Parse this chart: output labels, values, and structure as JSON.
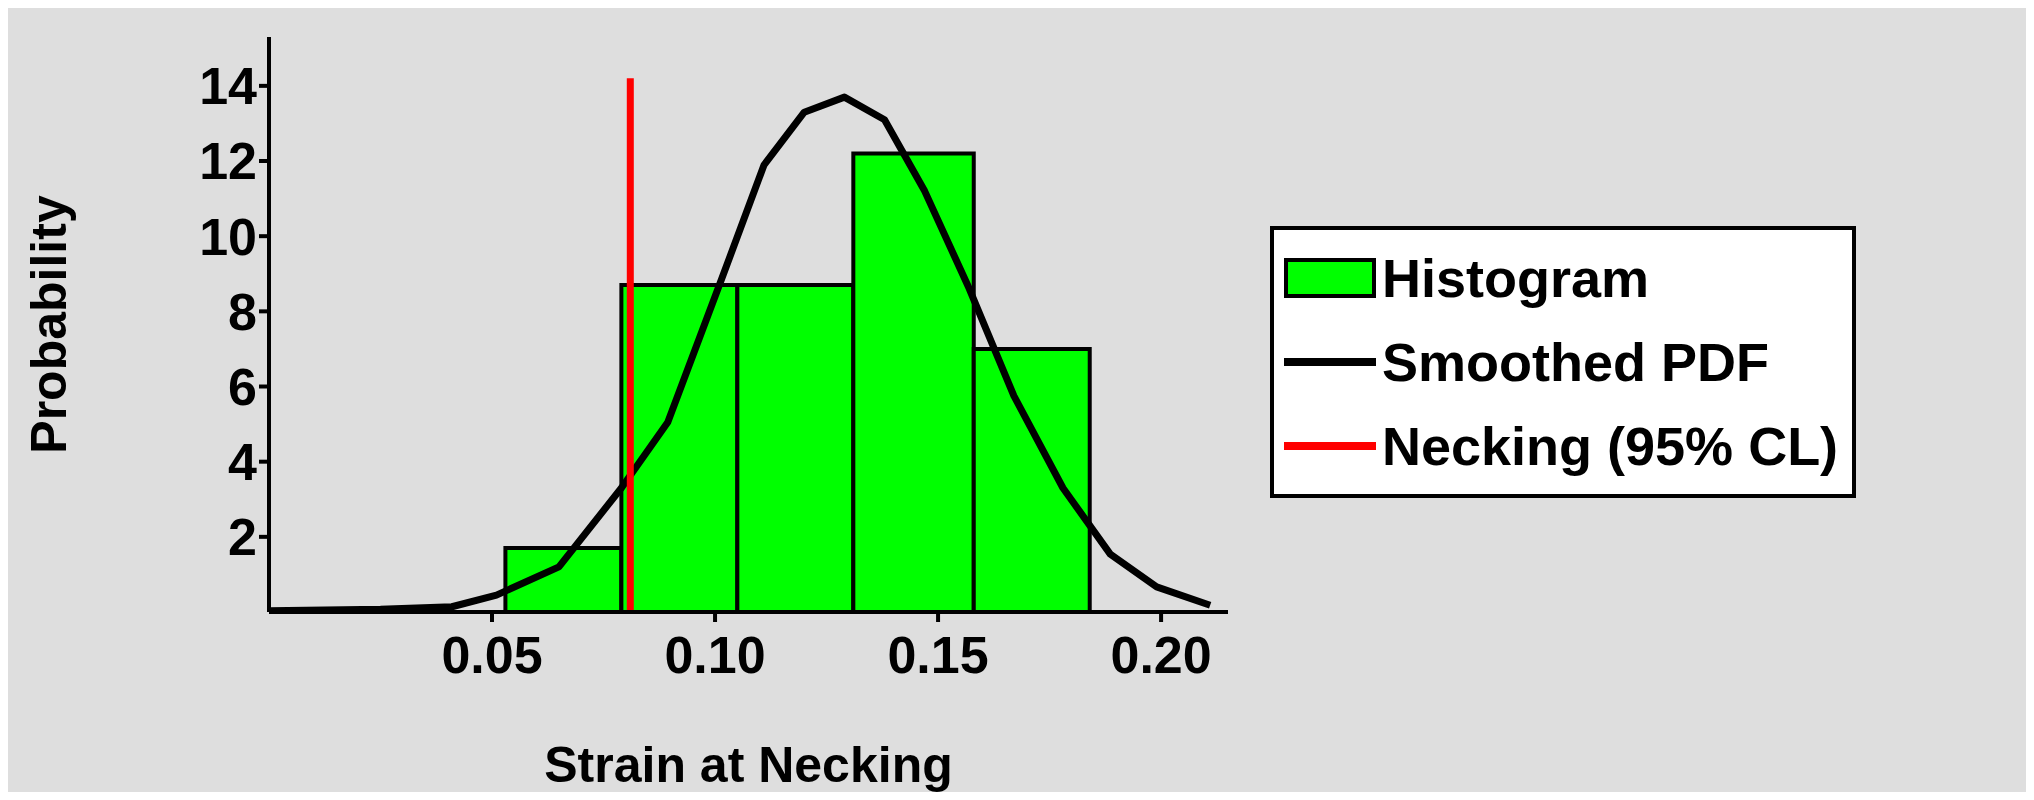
{
  "chart_data": {
    "type": "histogram",
    "xlabel": "Strain at Necking",
    "ylabel": "Probability",
    "xlim": [
      0,
      0.215
    ],
    "xticks": [
      0.05,
      {
        "value": 0.1,
        "label": "0.10"
      },
      0.15,
      {
        "value": 0.2,
        "label": "0.20"
      }
    ],
    "ylim": [
      0,
      15.3
    ],
    "yticks": [
      2,
      4,
      6,
      8,
      10,
      12,
      14
    ],
    "grid": false,
    "legend": "right",
    "bins": [
      0.053,
      0.079,
      0.105,
      0.131,
      0.158,
      0.184
    ],
    "series": [
      {
        "type": "histogram",
        "name": "Histogram",
        "color": "#00ff00",
        "values": [
          1.7,
          8.7,
          8.7,
          12.2,
          7.0
        ]
      },
      {
        "type": "line",
        "name": "Smoothed PDF",
        "color": "#000000",
        "x": [
          0,
          0.025,
          0.041,
          0.051,
          0.065,
          0.079,
          0.0894,
          0.1016,
          0.111,
          0.12,
          0.129,
          0.138,
          0.147,
          0.157,
          0.167,
          0.178,
          0.1886,
          0.199,
          0.211
        ],
        "values": [
          0.03,
          0.07,
          0.14,
          0.45,
          1.2,
          3.3,
          5.05,
          8.9,
          11.9,
          13.3,
          13.7,
          13.1,
          11.2,
          8.6,
          5.75,
          3.3,
          1.54,
          0.67,
          0.18
        ]
      },
      {
        "type": "line",
        "name": "Necking (95% CL)",
        "color": "#ff0000",
        "x": [
          0.081,
          0.081
        ],
        "values": [
          0,
          14.2
        ]
      }
    ]
  }
}
